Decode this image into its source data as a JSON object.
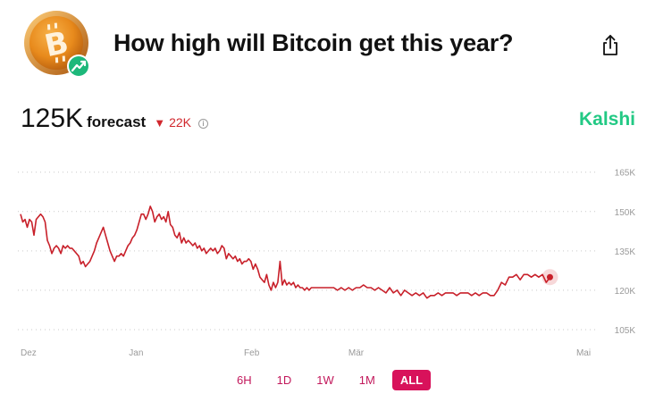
{
  "header": {
    "title": "How high will Bitcoin get this year?",
    "logo_icon": "bitcoin-coin-icon",
    "badge_icon": "trending-up-icon",
    "share_icon": "share-icon"
  },
  "forecast": {
    "value": "125K",
    "label": "forecast",
    "change": "22K",
    "change_direction": "down",
    "change_color": "#d1282e"
  },
  "brand": {
    "name": "Kalshi",
    "color": "#22c984"
  },
  "ranges": [
    {
      "label": "6H",
      "active": false
    },
    {
      "label": "1D",
      "active": false
    },
    {
      "label": "1W",
      "active": false
    },
    {
      "label": "1M",
      "active": false
    },
    {
      "label": "ALL",
      "active": true
    }
  ],
  "chart_data": {
    "type": "line",
    "title": "",
    "xlabel": "",
    "ylabel": "",
    "ylim": [
      105,
      170
    ],
    "y_ticks": [
      105,
      120,
      135,
      150,
      165
    ],
    "y_tick_labels": [
      "105K",
      "120K",
      "135K",
      "150K",
      "165K"
    ],
    "y_axis_position": "right",
    "x_ticks": [
      {
        "label": "Dez",
        "x": 0
      },
      {
        "label": "Jan",
        "x": 31
      },
      {
        "label": "Feb",
        "x": 62
      },
      {
        "label": "Mär",
        "x": 90
      },
      {
        "label": "Mai",
        "x": 151
      }
    ],
    "grid": true,
    "line_color": "#c8202a",
    "series": [
      {
        "values": [
          [
            0,
            149
          ],
          [
            0.6,
            146
          ],
          [
            1.2,
            147
          ],
          [
            1.8,
            144
          ],
          [
            2.4,
            147
          ],
          [
            3,
            146
          ],
          [
            3.6,
            141
          ],
          [
            4.2,
            147
          ],
          [
            4.8,
            148
          ],
          [
            5.4,
            149
          ],
          [
            6,
            148
          ],
          [
            6.6,
            146
          ],
          [
            7.2,
            139
          ],
          [
            7.8,
            137
          ],
          [
            8.4,
            134
          ],
          [
            9,
            136
          ],
          [
            9.6,
            137
          ],
          [
            10.2,
            136
          ],
          [
            10.8,
            134
          ],
          [
            11.4,
            137
          ],
          [
            12,
            136
          ],
          [
            12.6,
            137
          ],
          [
            13.2,
            136
          ],
          [
            13.8,
            136
          ],
          [
            14.4,
            135
          ],
          [
            15,
            134
          ],
          [
            15.6,
            133
          ],
          [
            16.2,
            130
          ],
          [
            16.8,
            131
          ],
          [
            17.4,
            129
          ],
          [
            18,
            130
          ],
          [
            18.6,
            131
          ],
          [
            19.2,
            133
          ],
          [
            19.8,
            135
          ],
          [
            20.4,
            138
          ],
          [
            21,
            140
          ],
          [
            21.6,
            142
          ],
          [
            22.2,
            144
          ],
          [
            22.8,
            141
          ],
          [
            23.4,
            138
          ],
          [
            24,
            135
          ],
          [
            24.6,
            133
          ],
          [
            25.2,
            131
          ],
          [
            25.8,
            133
          ],
          [
            26.4,
            133
          ],
          [
            27,
            134
          ],
          [
            27.6,
            133
          ],
          [
            28.2,
            135
          ],
          [
            28.8,
            137
          ],
          [
            29.4,
            138
          ],
          [
            30,
            140
          ],
          [
            30.6,
            141
          ],
          [
            31.2,
            143
          ],
          [
            31.8,
            146
          ],
          [
            32.4,
            149
          ],
          [
            33,
            149
          ],
          [
            33.6,
            147
          ],
          [
            34.2,
            149
          ],
          [
            34.8,
            152
          ],
          [
            35.4,
            150
          ],
          [
            36,
            146
          ],
          [
            36.6,
            148
          ],
          [
            37.2,
            149
          ],
          [
            37.8,
            147
          ],
          [
            38.4,
            148
          ],
          [
            39,
            146
          ],
          [
            39.6,
            150
          ],
          [
            40.2,
            145
          ],
          [
            40.8,
            144
          ],
          [
            41.4,
            141
          ],
          [
            42,
            140
          ],
          [
            42.6,
            142
          ],
          [
            43.2,
            138
          ],
          [
            43.8,
            140
          ],
          [
            44.4,
            138
          ],
          [
            45,
            139
          ],
          [
            45.6,
            138
          ],
          [
            46.2,
            137
          ],
          [
            46.8,
            138
          ],
          [
            47.4,
            136
          ],
          [
            48,
            137
          ],
          [
            48.6,
            135
          ],
          [
            49.2,
            136
          ],
          [
            49.8,
            134
          ],
          [
            50.4,
            135
          ],
          [
            51,
            136
          ],
          [
            51.6,
            135
          ],
          [
            52.2,
            136
          ],
          [
            52.8,
            134
          ],
          [
            53.4,
            135
          ],
          [
            54,
            137
          ],
          [
            54.6,
            136
          ],
          [
            55.2,
            132
          ],
          [
            55.8,
            134
          ],
          [
            56.4,
            133
          ],
          [
            57,
            132
          ],
          [
            57.6,
            133
          ],
          [
            58.2,
            131
          ],
          [
            58.8,
            132
          ],
          [
            59.4,
            130
          ],
          [
            60,
            131
          ],
          [
            60.6,
            131
          ],
          [
            61.2,
            132
          ],
          [
            61.8,
            131
          ],
          [
            62.4,
            128
          ],
          [
            63,
            130
          ],
          [
            63.6,
            128
          ],
          [
            64.2,
            125
          ],
          [
            64.8,
            124
          ],
          [
            65.4,
            123
          ],
          [
            66,
            126
          ],
          [
            66.6,
            122
          ],
          [
            67.2,
            120
          ],
          [
            67.8,
            123
          ],
          [
            68.4,
            121
          ],
          [
            69,
            123
          ],
          [
            69.6,
            131
          ],
          [
            70.2,
            122
          ],
          [
            70.8,
            124
          ],
          [
            71.4,
            122
          ],
          [
            72,
            123
          ],
          [
            72.6,
            122
          ],
          [
            73.2,
            123
          ],
          [
            73.8,
            121
          ],
          [
            74.4,
            122
          ],
          [
            75,
            121
          ],
          [
            75.6,
            121
          ],
          [
            76.2,
            120
          ],
          [
            76.8,
            121
          ],
          [
            77.4,
            120
          ],
          [
            78,
            121
          ],
          [
            79,
            121
          ],
          [
            80,
            121
          ],
          [
            81,
            121
          ],
          [
            82,
            121
          ],
          [
            83,
            121
          ],
          [
            84,
            121
          ],
          [
            85,
            120
          ],
          [
            86,
            121
          ],
          [
            87,
            120
          ],
          [
            88,
            121
          ],
          [
            89,
            120
          ],
          [
            90,
            121
          ],
          [
            91,
            121
          ],
          [
            92,
            122
          ],
          [
            93,
            121
          ],
          [
            94,
            121
          ],
          [
            95,
            120
          ],
          [
            96,
            121
          ],
          [
            97,
            120
          ],
          [
            98,
            119
          ],
          [
            99,
            121
          ],
          [
            100,
            119
          ],
          [
            101,
            120
          ],
          [
            102,
            118
          ],
          [
            103,
            120
          ],
          [
            104,
            119
          ],
          [
            105,
            118
          ],
          [
            106,
            119
          ],
          [
            107,
            118
          ],
          [
            108,
            119
          ],
          [
            109,
            117
          ],
          [
            110,
            118
          ],
          [
            111,
            118
          ],
          [
            112,
            119
          ],
          [
            113,
            118
          ],
          [
            114,
            119
          ],
          [
            115,
            119
          ],
          [
            116,
            119
          ],
          [
            117,
            118
          ],
          [
            118,
            119
          ],
          [
            119,
            119
          ],
          [
            120,
            119
          ],
          [
            121,
            118
          ],
          [
            122,
            119
          ],
          [
            123,
            118
          ],
          [
            124,
            119
          ],
          [
            125,
            119
          ],
          [
            126,
            118
          ],
          [
            127,
            118
          ],
          [
            128,
            120
          ],
          [
            129,
            123
          ],
          [
            130,
            122
          ],
          [
            131,
            125
          ],
          [
            132,
            125
          ],
          [
            133,
            126
          ],
          [
            134,
            124
          ],
          [
            135,
            126
          ],
          [
            136,
            126
          ],
          [
            137,
            125
          ],
          [
            138,
            126
          ],
          [
            139,
            125
          ],
          [
            140,
            126
          ],
          [
            141,
            123
          ],
          [
            142,
            125
          ]
        ]
      }
    ],
    "last_point": {
      "x": 142,
      "y": 125
    }
  }
}
